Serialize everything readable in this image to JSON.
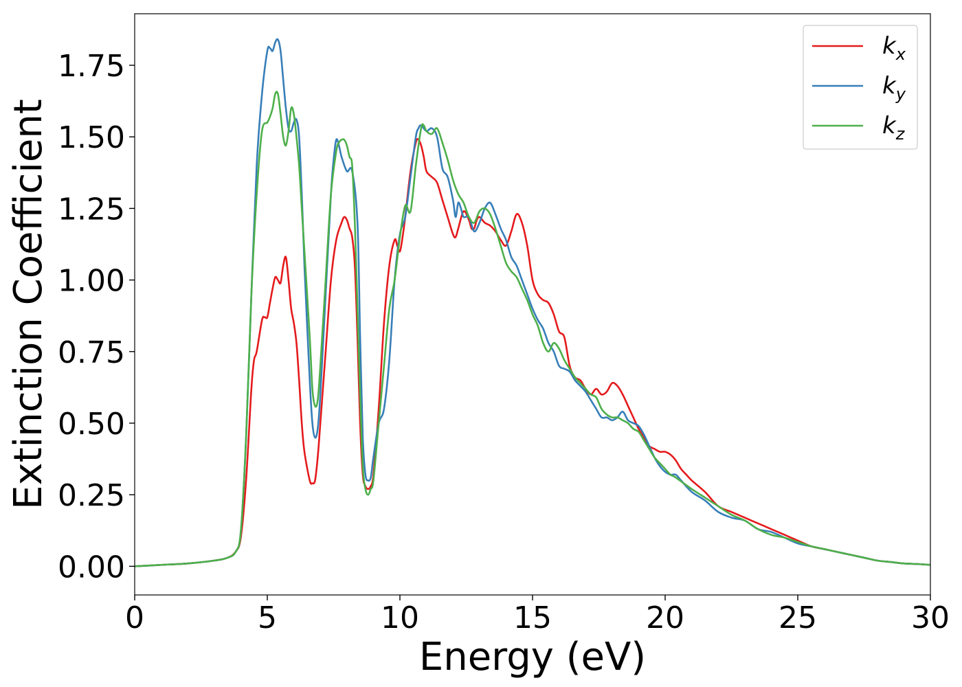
{
  "chart_data": {
    "type": "line",
    "title": "",
    "xlabel": "Energy (eV)",
    "ylabel": "Extinction Coefficient",
    "xlim": [
      0,
      30
    ],
    "ylim": [
      -0.1,
      1.93
    ],
    "xticks": [
      0,
      5,
      10,
      15,
      20,
      25,
      30
    ],
    "xtick_labels": [
      "0",
      "5",
      "10",
      "15",
      "20",
      "25",
      "30"
    ],
    "yticks": [
      0.0,
      0.25,
      0.5,
      0.75,
      1.0,
      1.25,
      1.5,
      1.75
    ],
    "ytick_labels": [
      "0.00",
      "0.25",
      "0.50",
      "0.75",
      "1.00",
      "1.25",
      "1.50",
      "1.75"
    ],
    "grid": false,
    "legend_position": "top-right",
    "series": [
      {
        "name": "kx",
        "legend_main": "k",
        "legend_sub": "x",
        "color": "#e41a1c",
        "x": [
          0,
          1,
          2,
          3,
          3.5,
          3.8,
          4.0,
          4.2,
          4.4,
          4.5,
          4.6,
          4.8,
          4.9,
          5.0,
          5.1,
          5.2,
          5.3,
          5.4,
          5.5,
          5.6,
          5.7,
          5.8,
          5.9,
          6.0,
          6.1,
          6.2,
          6.3,
          6.4,
          6.6,
          6.7,
          6.8,
          6.9,
          7.0,
          7.2,
          7.4,
          7.6,
          7.8,
          7.9,
          8.0,
          8.1,
          8.2,
          8.3,
          8.4,
          8.5,
          8.6,
          8.7,
          8.8,
          8.9,
          9.0,
          9.2,
          9.4,
          9.6,
          9.8,
          9.9,
          10.0,
          10.1,
          10.2,
          10.4,
          10.6,
          10.7,
          10.8,
          10.9,
          11.0,
          11.2,
          11.4,
          11.6,
          11.8,
          12.0,
          12.1,
          12.2,
          12.4,
          12.6,
          12.7,
          12.8,
          12.9,
          13.0,
          13.2,
          13.4,
          13.6,
          13.8,
          14.0,
          14.2,
          14.4,
          14.6,
          14.8,
          15.0,
          15.2,
          15.4,
          15.6,
          15.8,
          16.0,
          16.2,
          16.4,
          16.6,
          16.8,
          17.0,
          17.2,
          17.4,
          17.6,
          17.8,
          18.0,
          18.2,
          18.4,
          18.6,
          18.8,
          19.0,
          19.2,
          19.4,
          19.6,
          19.8,
          20.0,
          20.2,
          20.4,
          20.6,
          20.8,
          21.0,
          21.5,
          22.0,
          22.5,
          23.0,
          23.5,
          24.0,
          24.5,
          25.0,
          25.5,
          26.0,
          26.5,
          27.0,
          27.5,
          28.0,
          28.5,
          29.0,
          29.5,
          30.0
        ],
        "y": [
          0.0,
          0.005,
          0.01,
          0.02,
          0.03,
          0.05,
          0.1,
          0.3,
          0.62,
          0.72,
          0.75,
          0.86,
          0.87,
          0.87,
          0.92,
          0.97,
          1.01,
          1.0,
          0.99,
          1.05,
          1.08,
          1.0,
          0.9,
          0.85,
          0.78,
          0.65,
          0.5,
          0.4,
          0.3,
          0.29,
          0.3,
          0.38,
          0.5,
          0.75,
          1.0,
          1.14,
          1.2,
          1.22,
          1.21,
          1.18,
          1.15,
          1.05,
          0.8,
          0.5,
          0.32,
          0.28,
          0.27,
          0.28,
          0.32,
          0.55,
          0.85,
          1.05,
          1.14,
          1.12,
          1.1,
          1.15,
          1.22,
          1.38,
          1.48,
          1.49,
          1.47,
          1.43,
          1.38,
          1.36,
          1.34,
          1.28,
          1.22,
          1.16,
          1.15,
          1.18,
          1.24,
          1.21,
          1.18,
          1.18,
          1.21,
          1.22,
          1.2,
          1.19,
          1.17,
          1.14,
          1.12,
          1.17,
          1.23,
          1.2,
          1.12,
          1.0,
          0.95,
          0.93,
          0.92,
          0.88,
          0.82,
          0.8,
          0.7,
          0.66,
          0.65,
          0.62,
          0.6,
          0.62,
          0.6,
          0.61,
          0.64,
          0.63,
          0.6,
          0.56,
          0.52,
          0.48,
          0.45,
          0.42,
          0.41,
          0.4,
          0.4,
          0.39,
          0.37,
          0.34,
          0.32,
          0.3,
          0.26,
          0.21,
          0.19,
          0.17,
          0.15,
          0.13,
          0.11,
          0.09,
          0.07,
          0.06,
          0.05,
          0.04,
          0.03,
          0.02,
          0.015,
          0.01,
          0.008,
          0.005
        ]
      },
      {
        "name": "ky",
        "legend_main": "k",
        "legend_sub": "y",
        "color": "#377eb8",
        "x": [
          0,
          1,
          2,
          3,
          3.5,
          3.8,
          4.0,
          4.2,
          4.4,
          4.6,
          4.8,
          5.0,
          5.1,
          5.2,
          5.3,
          5.4,
          5.5,
          5.6,
          5.7,
          5.8,
          5.9,
          6.0,
          6.1,
          6.2,
          6.3,
          6.4,
          6.6,
          6.7,
          6.8,
          6.9,
          7.0,
          7.2,
          7.4,
          7.5,
          7.6,
          7.7,
          7.8,
          8.0,
          8.2,
          8.4,
          8.5,
          8.6,
          8.7,
          8.8,
          8.9,
          9.0,
          9.2,
          9.4,
          9.6,
          9.8,
          10.0,
          10.2,
          10.4,
          10.6,
          10.7,
          10.8,
          11.0,
          11.2,
          11.4,
          11.6,
          11.8,
          12.0,
          12.1,
          12.2,
          12.3,
          12.4,
          12.6,
          12.8,
          13.0,
          13.2,
          13.4,
          13.6,
          13.8,
          14.0,
          14.2,
          14.4,
          14.6,
          14.8,
          15.0,
          15.2,
          15.4,
          15.6,
          15.8,
          16.0,
          16.2,
          16.4,
          16.6,
          16.8,
          17.0,
          17.2,
          17.4,
          17.6,
          17.8,
          18.0,
          18.2,
          18.4,
          18.6,
          18.8,
          19.0,
          19.2,
          19.4,
          19.6,
          19.8,
          20.0,
          20.2,
          20.4,
          20.6,
          21.0,
          21.5,
          22.0,
          22.5,
          23.0,
          23.5,
          24.0,
          24.5,
          25.0,
          25.5,
          26.0,
          26.5,
          27.0,
          27.5,
          28.0,
          28.5,
          29.0,
          29.5,
          30.0
        ],
        "y": [
          0.0,
          0.005,
          0.01,
          0.02,
          0.03,
          0.05,
          0.12,
          0.45,
          0.95,
          1.4,
          1.65,
          1.8,
          1.81,
          1.8,
          1.83,
          1.84,
          1.8,
          1.7,
          1.6,
          1.53,
          1.52,
          1.55,
          1.56,
          1.5,
          1.3,
          1.05,
          0.65,
          0.5,
          0.45,
          0.48,
          0.6,
          0.95,
          1.3,
          1.42,
          1.49,
          1.47,
          1.43,
          1.38,
          1.38,
          1.2,
          0.8,
          0.45,
          0.32,
          0.3,
          0.31,
          0.38,
          0.5,
          0.55,
          0.72,
          1.0,
          1.16,
          1.22,
          1.36,
          1.5,
          1.53,
          1.54,
          1.52,
          1.53,
          1.5,
          1.39,
          1.36,
          1.28,
          1.22,
          1.27,
          1.25,
          1.22,
          1.22,
          1.17,
          1.2,
          1.25,
          1.27,
          1.23,
          1.18,
          1.14,
          1.08,
          1.05,
          1.0,
          0.95,
          0.9,
          0.86,
          0.83,
          0.78,
          0.75,
          0.7,
          0.69,
          0.68,
          0.65,
          0.63,
          0.61,
          0.58,
          0.55,
          0.52,
          0.52,
          0.51,
          0.52,
          0.54,
          0.51,
          0.5,
          0.49,
          0.46,
          0.42,
          0.38,
          0.35,
          0.33,
          0.32,
          0.32,
          0.3,
          0.26,
          0.23,
          0.19,
          0.17,
          0.16,
          0.13,
          0.12,
          0.1,
          0.08,
          0.07,
          0.06,
          0.05,
          0.04,
          0.03,
          0.02,
          0.015,
          0.01,
          0.008,
          0.005
        ]
      },
      {
        "name": "kz",
        "legend_main": "k",
        "legend_sub": "z",
        "color": "#4daf4a",
        "x": [
          0,
          1,
          2,
          3,
          3.5,
          3.8,
          4.0,
          4.2,
          4.4,
          4.6,
          4.8,
          5.0,
          5.1,
          5.2,
          5.3,
          5.4,
          5.5,
          5.6,
          5.7,
          5.8,
          5.9,
          6.0,
          6.1,
          6.2,
          6.3,
          6.4,
          6.6,
          6.7,
          6.8,
          6.9,
          7.0,
          7.2,
          7.4,
          7.6,
          7.7,
          7.8,
          7.9,
          8.0,
          8.1,
          8.2,
          8.3,
          8.4,
          8.5,
          8.6,
          8.7,
          8.8,
          8.9,
          9.0,
          9.2,
          9.4,
          9.6,
          9.8,
          10.0,
          10.2,
          10.4,
          10.6,
          10.8,
          10.9,
          11.0,
          11.2,
          11.4,
          11.6,
          11.8,
          12.0,
          12.2,
          12.4,
          12.6,
          12.8,
          13.0,
          13.2,
          13.4,
          13.6,
          13.8,
          14.0,
          14.2,
          14.4,
          14.6,
          14.8,
          15.0,
          15.2,
          15.4,
          15.6,
          15.8,
          16.0,
          16.2,
          16.4,
          16.6,
          16.8,
          17.0,
          17.2,
          17.4,
          17.6,
          17.8,
          18.0,
          18.2,
          18.4,
          18.6,
          18.8,
          19.0,
          19.2,
          19.4,
          19.6,
          19.8,
          20.0,
          20.2,
          20.4,
          21.0,
          21.5,
          22.0,
          22.5,
          23.0,
          23.5,
          24.0,
          24.5,
          25.0,
          25.5,
          26.0,
          26.5,
          27.0,
          27.5,
          28.0,
          28.5,
          29.0,
          29.5,
          30.0
        ],
        "y": [
          0.0,
          0.005,
          0.01,
          0.02,
          0.03,
          0.05,
          0.12,
          0.45,
          0.95,
          1.3,
          1.52,
          1.55,
          1.57,
          1.6,
          1.65,
          1.65,
          1.58,
          1.5,
          1.47,
          1.52,
          1.6,
          1.58,
          1.5,
          1.4,
          1.25,
          1.1,
          0.8,
          0.62,
          0.56,
          0.58,
          0.7,
          1.0,
          1.3,
          1.45,
          1.48,
          1.49,
          1.49,
          1.47,
          1.43,
          1.4,
          1.2,
          0.9,
          0.6,
          0.35,
          0.27,
          0.25,
          0.27,
          0.3,
          0.5,
          0.7,
          0.9,
          1.0,
          1.15,
          1.26,
          1.24,
          1.4,
          1.53,
          1.54,
          1.52,
          1.51,
          1.53,
          1.48,
          1.42,
          1.35,
          1.3,
          1.27,
          1.22,
          1.2,
          1.24,
          1.25,
          1.23,
          1.18,
          1.12,
          1.06,
          1.03,
          1.01,
          0.97,
          0.93,
          0.88,
          0.84,
          0.78,
          0.75,
          0.78,
          0.76,
          0.72,
          0.69,
          0.66,
          0.64,
          0.62,
          0.6,
          0.59,
          0.55,
          0.53,
          0.52,
          0.52,
          0.51,
          0.5,
          0.48,
          0.47,
          0.44,
          0.41,
          0.38,
          0.36,
          0.34,
          0.32,
          0.31,
          0.27,
          0.24,
          0.21,
          0.18,
          0.16,
          0.13,
          0.11,
          0.1,
          0.085,
          0.07,
          0.06,
          0.05,
          0.04,
          0.03,
          0.02,
          0.015,
          0.01,
          0.008,
          0.005
        ]
      }
    ]
  }
}
